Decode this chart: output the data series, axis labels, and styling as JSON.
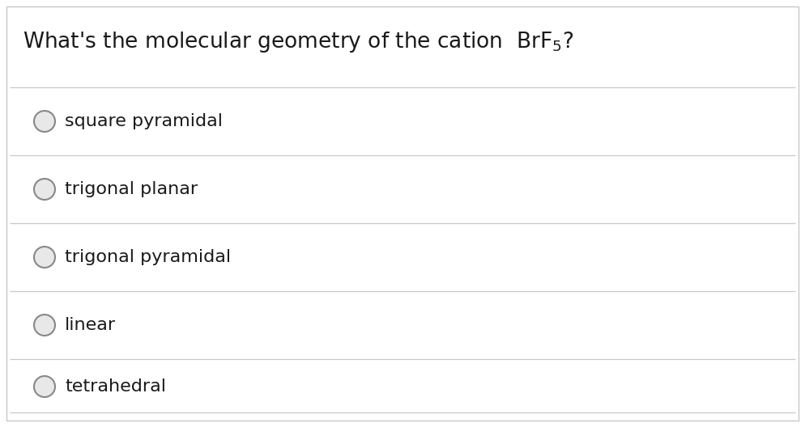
{
  "title_text": "What's the molecular geometry of the cation  BrF$_5$?",
  "options": [
    "square pyramidal",
    "trigonal planar",
    "trigonal pyramidal",
    "linear",
    "tetrahedral"
  ],
  "bg_color": "#ffffff",
  "border_color": "#c8c8c8",
  "text_color": "#1a1a1a",
  "line_color": "#c8c8c8",
  "circle_edge_color": "#888888",
  "circle_face_color": "#e8e8e8",
  "title_fontsize": 19,
  "option_fontsize": 16,
  "fig_width": 9.94,
  "fig_height": 5.28,
  "dpi": 100
}
